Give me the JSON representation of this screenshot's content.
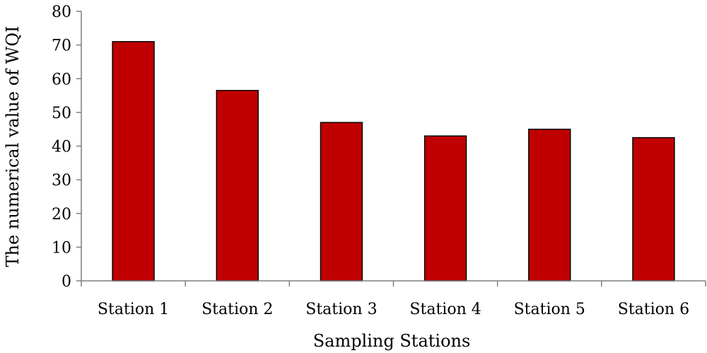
{
  "chart_data": {
    "type": "bar",
    "categories": [
      "Station 1",
      "Station 2",
      "Station 3",
      "Station 4",
      "Station 5",
      "Station 6"
    ],
    "series": [
      {
        "values": [
          71,
          56.5,
          47,
          43,
          45,
          42.5
        ]
      }
    ],
    "title": "",
    "xlabel": "Sampling Stations",
    "ylabel": "The numerical value of WQI",
    "ylim": [
      0,
      80
    ],
    "yticks": [
      0,
      10,
      20,
      30,
      40,
      50,
      60,
      70,
      80
    ],
    "grid": false,
    "legend": "none",
    "colors": {
      "bar": "#c00000",
      "bar_outline": "#000000",
      "axis": "#7f7f7f"
    }
  }
}
